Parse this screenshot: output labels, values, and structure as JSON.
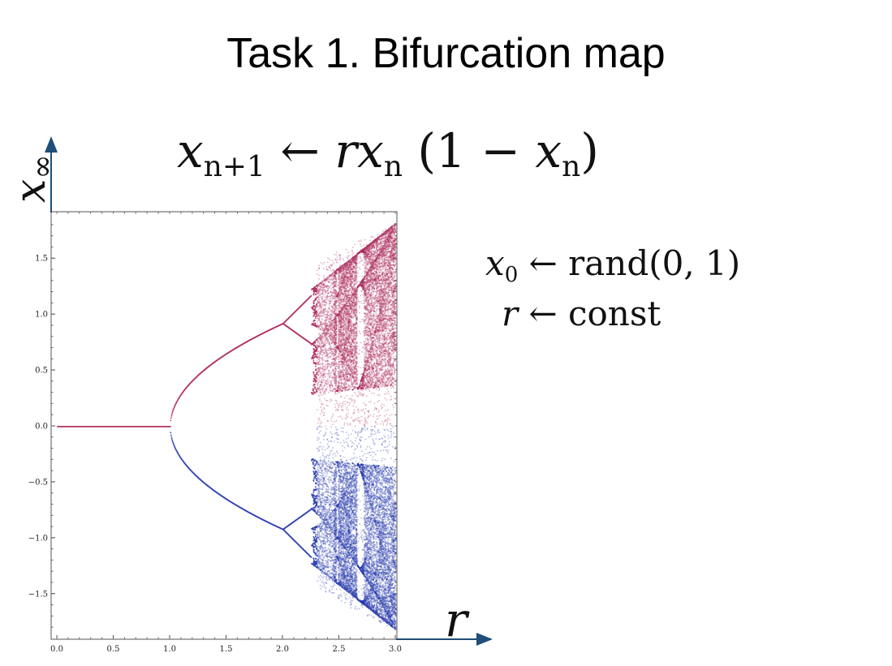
{
  "slide": {
    "title": "Task 1. Bifurcation map",
    "equation": {
      "lhs_var": "x",
      "lhs_sub": "n+1",
      "arrow": "←",
      "rhs_r": "r",
      "rhs_x": "x",
      "rhs_sub": "n",
      "rhs_paren_open": "(1 − ",
      "rhs_x2": "x",
      "rhs_sub2": "n",
      "rhs_paren_close": ")"
    },
    "init_x0": {
      "var": "x",
      "sub": "0",
      "arrow": "←",
      "value": "rand(0, 1)"
    },
    "init_r": {
      "var": "r",
      "arrow": "←",
      "value": "const"
    }
  },
  "chart_data": {
    "type": "scatter",
    "xlabel": "r",
    "ylabel_var": "x",
    "ylabel_sub": "∞",
    "xlim": [
      0.0,
      3.0
    ],
    "ylim": [
      -1.85,
      1.85
    ],
    "xticks": [
      "0.0",
      "0.5",
      "1.0",
      "1.5",
      "2.0",
      "2.5",
      "3.0"
    ],
    "yticks": [
      "1.5",
      "1.0",
      "0.5",
      "0.0",
      "−0.5",
      "−1.0",
      "−1.5"
    ],
    "xtick_values": [
      0.0,
      0.5,
      1.0,
      1.5,
      2.0,
      2.5,
      3.0
    ],
    "ytick_values": [
      1.5,
      1.0,
      0.5,
      0.0,
      -0.5,
      -1.0,
      -1.5
    ],
    "grid": false,
    "colors": {
      "upper": "#b03060",
      "lower": "#2c3fb0",
      "axis_arrow": "#1f4e79"
    },
    "series_description_branches": [
      {
        "r_range": [
          0.0,
          1.0
        ],
        "value": 0.0
      },
      {
        "r_range": [
          1.0,
          2.0
        ],
        "value_at_end": 0.92
      },
      {
        "r_range": [
          2.0,
          2.25
        ],
        "outer_at_end": 1.17,
        "inner_at_end": 0.74
      },
      {
        "r_range": [
          2.25,
          3.0
        ],
        "envelope_at_end": 1.82
      }
    ]
  }
}
